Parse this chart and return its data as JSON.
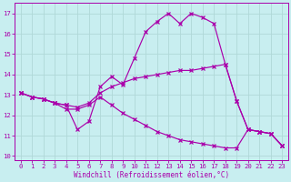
{
  "xlabel": "Windchill (Refroidissement éolien,°C)",
  "background_color": "#c8eef0",
  "grid_color": "#b0d8d8",
  "line_color": "#aa00aa",
  "xlim": [
    -0.5,
    23.5
  ],
  "ylim": [
    9.8,
    17.5
  ],
  "yticks": [
    10,
    11,
    12,
    13,
    14,
    15,
    16,
    17
  ],
  "xticks": [
    0,
    1,
    2,
    3,
    4,
    5,
    6,
    7,
    8,
    9,
    10,
    11,
    12,
    13,
    14,
    15,
    16,
    17,
    18,
    19,
    20,
    21,
    22,
    23
  ],
  "series1_x": [
    0,
    1,
    2,
    3,
    4,
    5,
    6,
    7,
    8,
    9,
    10,
    11,
    12,
    13,
    14,
    15,
    16,
    17,
    18,
    19,
    20,
    21,
    22,
    23
  ],
  "series1_y": [
    13.1,
    12.9,
    12.8,
    12.6,
    12.5,
    11.3,
    11.7,
    13.4,
    13.9,
    13.5,
    14.8,
    16.1,
    16.6,
    17.0,
    16.5,
    17.0,
    16.8,
    16.5,
    14.5,
    12.7,
    11.3,
    11.2,
    11.1,
    10.5
  ],
  "series2_x": [
    0,
    1,
    2,
    3,
    4,
    5,
    6,
    7,
    8,
    9,
    10,
    11,
    12,
    13,
    14,
    15,
    16,
    17,
    18,
    19,
    20,
    21,
    22,
    23
  ],
  "series2_y": [
    13.1,
    12.9,
    12.8,
    12.6,
    12.5,
    12.4,
    12.6,
    13.1,
    13.4,
    13.6,
    13.8,
    13.9,
    14.0,
    14.1,
    14.2,
    14.2,
    14.3,
    14.4,
    14.5,
    12.7,
    11.3,
    11.2,
    11.1,
    10.5
  ],
  "series3_x": [
    0,
    1,
    2,
    3,
    4,
    5,
    6,
    7,
    8,
    9,
    10,
    11,
    12,
    13,
    14,
    15,
    16,
    17,
    18,
    19,
    20,
    21,
    22,
    23
  ],
  "series3_y": [
    13.1,
    12.9,
    12.8,
    12.6,
    12.3,
    12.3,
    12.5,
    12.9,
    12.5,
    12.1,
    11.8,
    11.5,
    11.2,
    11.0,
    10.8,
    10.7,
    10.6,
    10.5,
    10.4,
    10.4,
    11.3,
    11.2,
    11.1,
    10.5
  ],
  "tick_fontsize": 5.2,
  "xlabel_fontsize": 5.5
}
